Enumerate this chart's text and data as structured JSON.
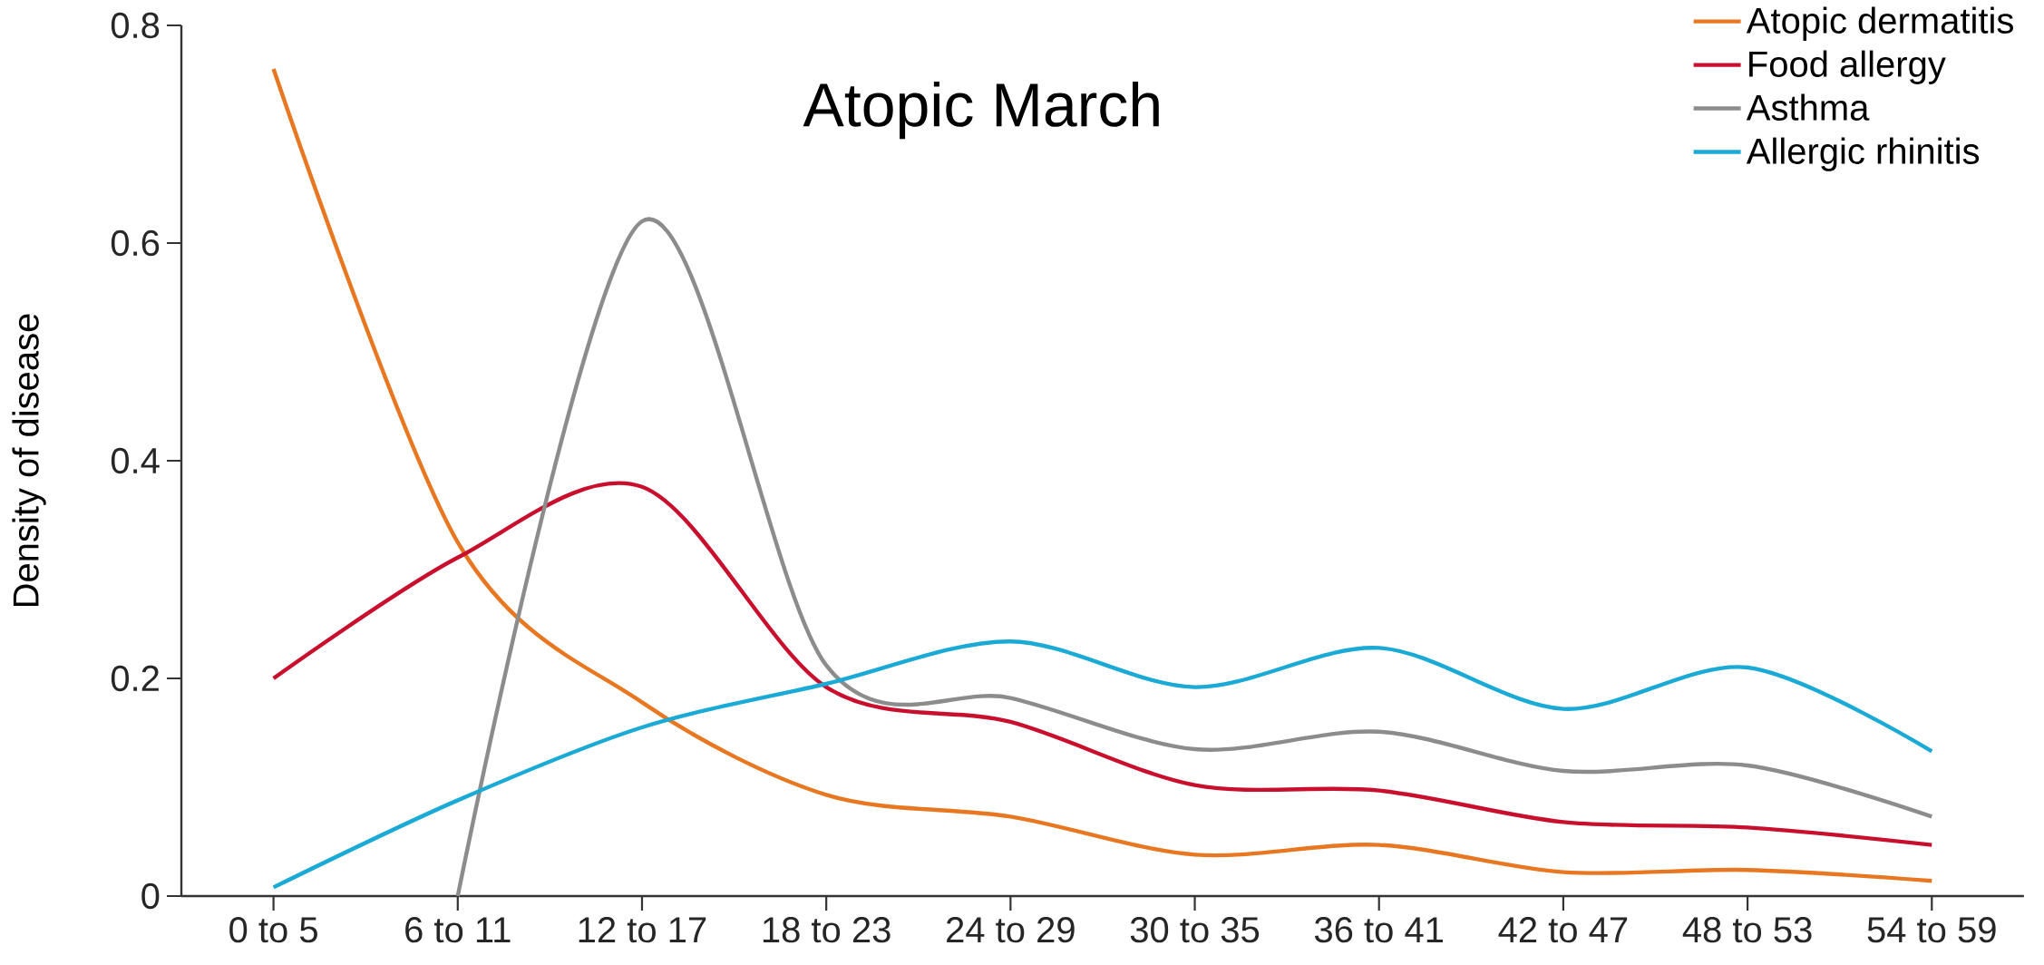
{
  "chart_data": {
    "type": "line",
    "title": "Atopic March",
    "ylabel": "Density of disease",
    "categories": [
      "0 to 5",
      "6 to 11",
      "12 to 17",
      "18 to 23",
      "24 to 29",
      "30 to 35",
      "36 to 41",
      "42 to 47",
      "48 to 53",
      "54 to 59"
    ],
    "ylim": [
      0,
      0.8
    ],
    "yticks": [
      0,
      0.2,
      0.4,
      0.6,
      0.8
    ],
    "legend": "top right",
    "series": [
      {
        "name": "Atopic dermatitis",
        "color": "#e87722",
        "values": [
          0.76,
          0.325,
          0.178,
          0.093,
          0.073,
          0.038,
          0.047,
          0.022,
          0.024,
          0.014
        ]
      },
      {
        "name": "Food allergy",
        "color": "#c8102e",
        "values": [
          0.2,
          0.311,
          0.376,
          0.192,
          0.16,
          0.102,
          0.097,
          0.068,
          0.063,
          0.047
        ]
      },
      {
        "name": "Asthma",
        "color": "#8c8c8c",
        "values": [
          null,
          0,
          0.62,
          0.212,
          0.182,
          0.135,
          0.151,
          0.115,
          0.12,
          0.073
        ]
      },
      {
        "name": "Allergic rhinitis",
        "color": "#1ba9d6",
        "values": [
          0.008,
          0.088,
          0.155,
          0.195,
          0.234,
          0.192,
          0.228,
          0.172,
          0.21,
          0.133
        ]
      }
    ]
  }
}
